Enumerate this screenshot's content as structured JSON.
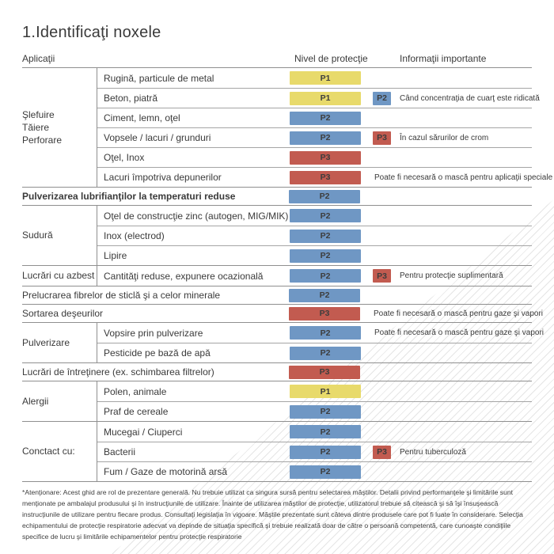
{
  "page": {
    "title": "1.Identificaţi noxele",
    "headers": {
      "applications": "Aplicaţii",
      "protection_level": "Nivel de protecţie",
      "important_info": "Informaţii importante"
    },
    "footnote": "*Atenţionare: Acest ghid are rol de prezentare generală. Nu trebuie utilizat ca singura sursă pentru selectarea măştilor. Detalii privind performanţele şi limitările sunt menţionate pe ambalajul produsului şi în instrucţiunile de utilizare. Înainte de utilizarea măştilor de protecţie, utilizatorul trebuie să citească şi să îşi însuşească instrucţiunile de utilizare pentru fiecare produs. Consultaţi legislaţia în vigoare. Măştile prezentate sunt câteva dintre produsele care pot fi luate în considerare. Selecţia echipamentului de protecţie respiratorie adecvat va depinde de situaţia specifică şi trebuie realizată doar de către o persoană competentă, care cunoaşte condiţiile specifice de lucru şi limitările echipamentelor pentru protecţie respiratorie"
  },
  "colors": {
    "p1": "#e8da6b",
    "p2": "#6f97c4",
    "p3": "#c25b50",
    "line_strong": "#8f8f8f",
    "line_light": "#a5a5a5",
    "text": "#3a3a3a"
  },
  "sections": [
    {
      "category": "Şlefuire\nTăiere\nPerforare",
      "rows": [
        {
          "label": "Rugină, particule de metal",
          "level": "P1"
        },
        {
          "label": "Beton, piatră",
          "level": "P1",
          "secondary": "P2",
          "info": "Când concentraţia de cuarţ este ridicată"
        },
        {
          "label": "Ciment, lemn, oţel",
          "level": "P2"
        },
        {
          "label": "Vopsele / lacuri / grunduri",
          "level": "P2",
          "secondary": "P3",
          "info": "În cazul sărurilor de crom"
        },
        {
          "label": "Oţel, Inox",
          "level": "P3"
        },
        {
          "label": "Lacuri împotriva depunerilor",
          "level": "P3",
          "info": "Poate fi necesară o mască pentru aplicaţii speciale"
        }
      ]
    },
    {
      "category": "",
      "rows": [
        {
          "label": "Pulverizarea lubrifianţilor la temperaturi reduse",
          "level": "P2",
          "bold": true
        }
      ]
    },
    {
      "category": "Sudură",
      "rows": [
        {
          "label": "Oţel de construcţie zinc (autogen, MIG/MIK)",
          "level": "P2"
        },
        {
          "label": "Inox (electrod)",
          "level": "P2"
        },
        {
          "label": "Lipire",
          "level": "P2"
        }
      ]
    },
    {
      "category": "Lucrări cu azbest",
      "rows": [
        {
          "label": "Cantităţi reduse, expunere ocazională",
          "level": "P2",
          "secondary": "P3",
          "info": "Pentru protecţie suplimentară"
        }
      ]
    },
    {
      "category": "",
      "rows": [
        {
          "label": "Prelucrarea fibrelor de sticlă şi a celor minerale",
          "level": "P2"
        }
      ]
    },
    {
      "category": "",
      "rows": [
        {
          "label": "Sortarea deşeurilor",
          "level": "P3",
          "info": "Poate fi necesară o mască pentru gaze şi vapori"
        }
      ]
    },
    {
      "category": "Pulverizare",
      "rows": [
        {
          "label": "Vopsire prin pulverizare",
          "level": "P2",
          "info": "Poate fi necesară o mască pentru gaze şi vapori"
        },
        {
          "label": "Pesticide pe bază de apă",
          "level": "P2"
        }
      ]
    },
    {
      "category": "",
      "rows": [
        {
          "label": "Lucrări de întreţinere (ex. schimbarea filtrelor)",
          "level": "P3"
        }
      ]
    },
    {
      "category": "Alergii",
      "rows": [
        {
          "label": "Polen, animale",
          "level": "P1"
        },
        {
          "label": "Praf de cereale",
          "level": "P2"
        }
      ]
    },
    {
      "category": "Conctact cu:",
      "rows": [
        {
          "label": "Mucegai / Ciuperci",
          "level": "P2"
        },
        {
          "label": "Bacterii",
          "level": "P2",
          "secondary": "P3",
          "info": "Pentru tuberculoză"
        },
        {
          "label": "Fum / Gaze de motorină arsă",
          "level": "P2"
        }
      ]
    }
  ]
}
